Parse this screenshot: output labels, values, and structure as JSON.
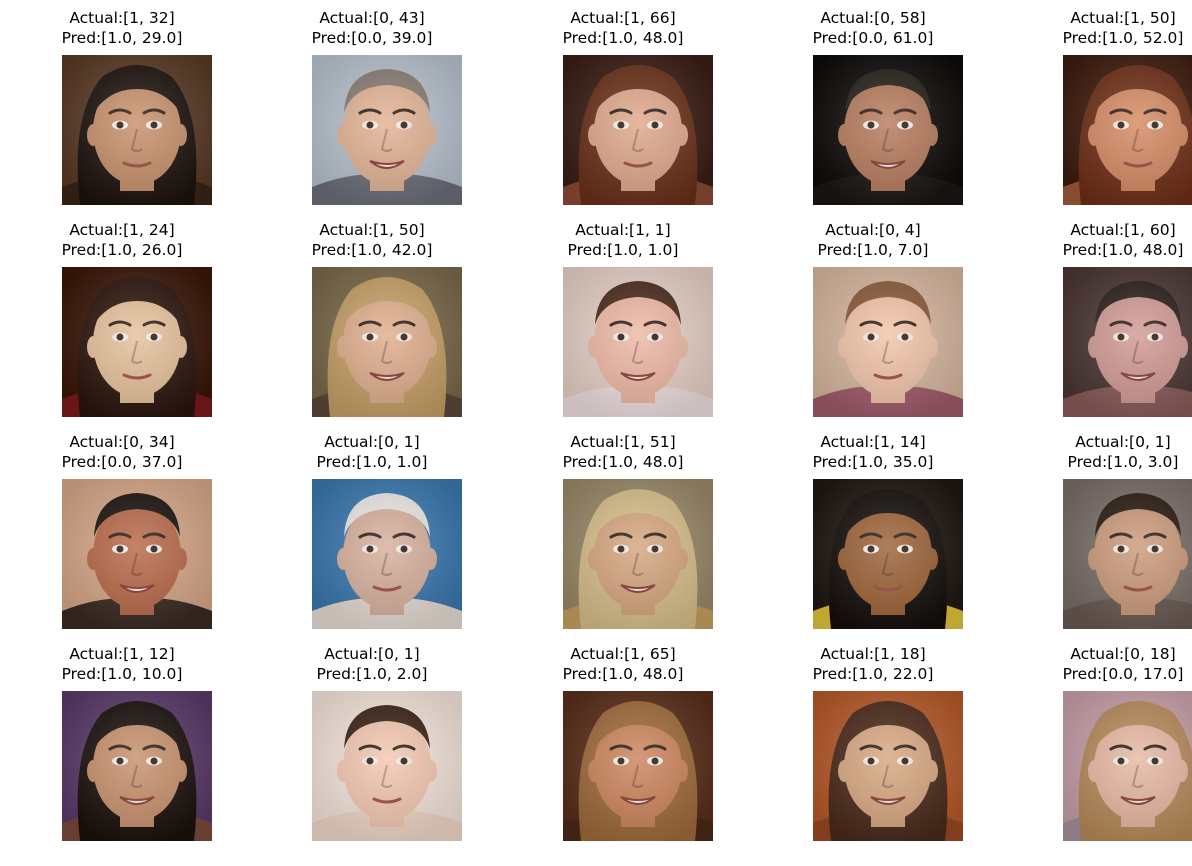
{
  "faces": [
    {
      "actual": "Actual:[1, 32]",
      "pred": "Pred:[1.0, 29.0]",
      "skin": "#c8906a",
      "hair": "#1c120d",
      "bg": "#5a3a26",
      "shirt": "#3a2418",
      "hair_style": "long",
      "expression": "neutral"
    },
    {
      "actual": "Actual:[0, 43]",
      "pred": "Pred:[0.0, 39.0]",
      "skin": "#e2b394",
      "hair": "#8a7d72",
      "bg": "#b9c3cf",
      "shirt": "#6b6f78",
      "hair_style": "short",
      "expression": "smile"
    },
    {
      "actual": "Actual:[1, 66]",
      "pred": "Pred:[1.0, 48.0]",
      "skin": "#e0a88a",
      "hair": "#6a3018",
      "bg": "#3a1e14",
      "shirt": "#8a4a32",
      "hair_style": "long",
      "expression": "neutral"
    },
    {
      "actual": "Actual:[0, 58]",
      "pred": "Pred:[0.0, 61.0]",
      "skin": "#b67a5a",
      "hair": "#262018",
      "bg": "#0e0c0a",
      "shirt": "#1a1612",
      "hair_style": "short",
      "expression": "smile"
    },
    {
      "actual": "Actual:[1, 50]",
      "pred": "Pred:[1.0, 52.0]",
      "skin": "#d58a62",
      "hair": "#6e2e16",
      "bg": "#3e1c0e",
      "shirt": "#a05a3a",
      "hair_style": "long",
      "expression": "neutral"
    },
    {
      "actual": "Actual:[1, 24]",
      "pred": "Pred:[1.0, 26.0]",
      "skin": "#e6c19a",
      "hair": "#2a140c",
      "bg": "#3a1608",
      "shirt": "#7a1a1a",
      "hair_style": "long",
      "expression": "neutral"
    },
    {
      "actual": "Actual:[1, 50]",
      "pred": "Pred:[1.0, 42.0]",
      "skin": "#e0ae8c",
      "hair": "#c6a066",
      "bg": "#7a6a4a",
      "shirt": "#5a4a3a",
      "hair_style": "long",
      "expression": "smile"
    },
    {
      "actual": "Actual:[1, 1]",
      "pred": "Pred:[1.0, 1.0]",
      "skin": "#eeb8a4",
      "hair": "#4a2a1a",
      "bg": "#e8d2c8",
      "shirt": "#f0e0e0",
      "hair_style": "short",
      "expression": "smile"
    },
    {
      "actual": "Actual:[0, 4]",
      "pred": "Pred:[1.0, 7.0]",
      "skin": "#f2c4a8",
      "hair": "#8a5a3a",
      "bg": "#d8b8a0",
      "shirt": "#a05a6a",
      "hair_style": "short",
      "expression": "neutral"
    },
    {
      "actual": "Actual:[1, 60]",
      "pred": "Pred:[1.0, 48.0]",
      "skin": "#d29a94",
      "hair": "#2a1e1a",
      "bg": "#4a3632",
      "shirt": "#8a5a5a",
      "hair_style": "short",
      "expression": "smile"
    },
    {
      "actual": "Actual:[0, 34]",
      "pred": "Pred:[0.0, 37.0]",
      "skin": "#b86848",
      "hair": "#1a120e",
      "bg": "#d8a888",
      "shirt": "#3a2a22",
      "hair_style": "short",
      "expression": "smile"
    },
    {
      "actual": "Actual:[0, 1]",
      "pred": "Pred:[1.0, 1.0]",
      "skin": "#d8b09c",
      "hair": "#ece8e6",
      "bg": "#3a78b0",
      "shirt": "#e6dcd4",
      "hair_style": "short",
      "expression": "neutral"
    },
    {
      "actual": "Actual:[1, 51]",
      "pred": "Pred:[1.0, 48.0]",
      "skin": "#d6a67e",
      "hair": "#d8c08a",
      "bg": "#9a8a6a",
      "shirt": "#c8a060",
      "hair_style": "long",
      "expression": "smile"
    },
    {
      "actual": "Actual:[1, 14]",
      "pred": "Pred:[1.0, 35.0]",
      "skin": "#9c6236",
      "hair": "#140e0a",
      "bg": "#1e1610",
      "shirt": "#e2c43a",
      "hair_style": "long",
      "expression": "neutral"
    },
    {
      "actual": "Actual:[0, 1]",
      "pred": "Pred:[1.0, 3.0]",
      "skin": "#cc9a7a",
      "hair": "#2a1a12",
      "bg": "#7a6e68",
      "shirt": "#6a5a52",
      "hair_style": "short",
      "expression": "neutral"
    },
    {
      "actual": "Actual:[1, 12]",
      "pred": "Pred:[1.0, 10.0]",
      "skin": "#c8906c",
      "hair": "#1a100c",
      "bg": "#5a3a6a",
      "shirt": "#7a4a3a",
      "hair_style": "long",
      "expression": "smile"
    },
    {
      "actual": "Actual:[0, 1]",
      "pred": "Pred:[1.0, 2.0]",
      "skin": "#f4c8b0",
      "hair": "#3a2216",
      "bg": "#f6e6dc",
      "shirt": "#f2d8c8",
      "hair_style": "short",
      "expression": "neutral"
    },
    {
      "actual": "Actual:[1, 65]",
      "pred": "Pred:[1.0, 48.0]",
      "skin": "#cc845c",
      "hair": "#a06a3a",
      "bg": "#5a2e1a",
      "shirt": "#4a2a1a",
      "hair_style": "long",
      "expression": "smile"
    },
    {
      "actual": "Actual:[1, 18]",
      "pred": "Pred:[1.0, 22.0]",
      "skin": "#d8a880",
      "hair": "#4a2a1a",
      "bg": "#b85a2a",
      "shirt": "#9a4a22",
      "hair_style": "long",
      "expression": "smile"
    },
    {
      "actual": "Actual:[0, 18]",
      "pred": "Pred:[0.0, 17.0]",
      "skin": "#e8b8a2",
      "hair": "#b88a5a",
      "bg": "#c8a0a8",
      "shirt": "#a890a0",
      "hair_style": "long",
      "expression": "smile"
    }
  ]
}
